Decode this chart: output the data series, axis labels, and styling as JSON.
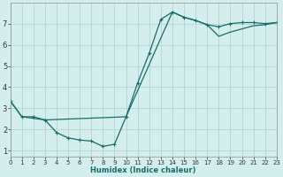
{
  "xlabel": "Humidex (Indice chaleur)",
  "bg_color": "#d4eeed",
  "grid_color": "#b8d8d4",
  "line_color": "#1a6b6b",
  "line1_x": [
    0,
    1,
    2,
    3,
    4,
    5,
    6,
    7,
    8,
    9,
    10,
    11,
    12,
    13,
    14,
    15,
    16,
    17,
    18,
    19,
    20,
    21,
    22,
    23
  ],
  "line1_y": [
    3.35,
    2.6,
    2.6,
    2.45,
    1.85,
    1.6,
    1.5,
    1.45,
    1.2,
    1.3,
    2.6,
    4.2,
    5.6,
    7.2,
    7.55,
    7.3,
    7.15,
    6.95,
    6.85,
    7.0,
    7.05,
    7.05,
    7.0,
    7.05
  ],
  "line2_x": [
    0,
    1,
    3,
    10,
    14,
    15,
    16,
    17,
    18,
    19,
    20,
    21,
    22,
    23
  ],
  "line2_y": [
    3.35,
    2.6,
    2.45,
    2.6,
    7.55,
    7.3,
    7.15,
    6.95,
    6.4,
    6.6,
    6.75,
    6.9,
    6.95,
    7.05
  ],
  "xlim": [
    0,
    23
  ],
  "ylim": [
    0.7,
    8.0
  ],
  "yticks": [
    1,
    2,
    3,
    4,
    5,
    6,
    7
  ],
  "xticks": [
    0,
    1,
    2,
    3,
    4,
    5,
    6,
    7,
    8,
    9,
    10,
    11,
    12,
    13,
    14,
    15,
    16,
    17,
    18,
    19,
    20,
    21,
    22,
    23
  ]
}
